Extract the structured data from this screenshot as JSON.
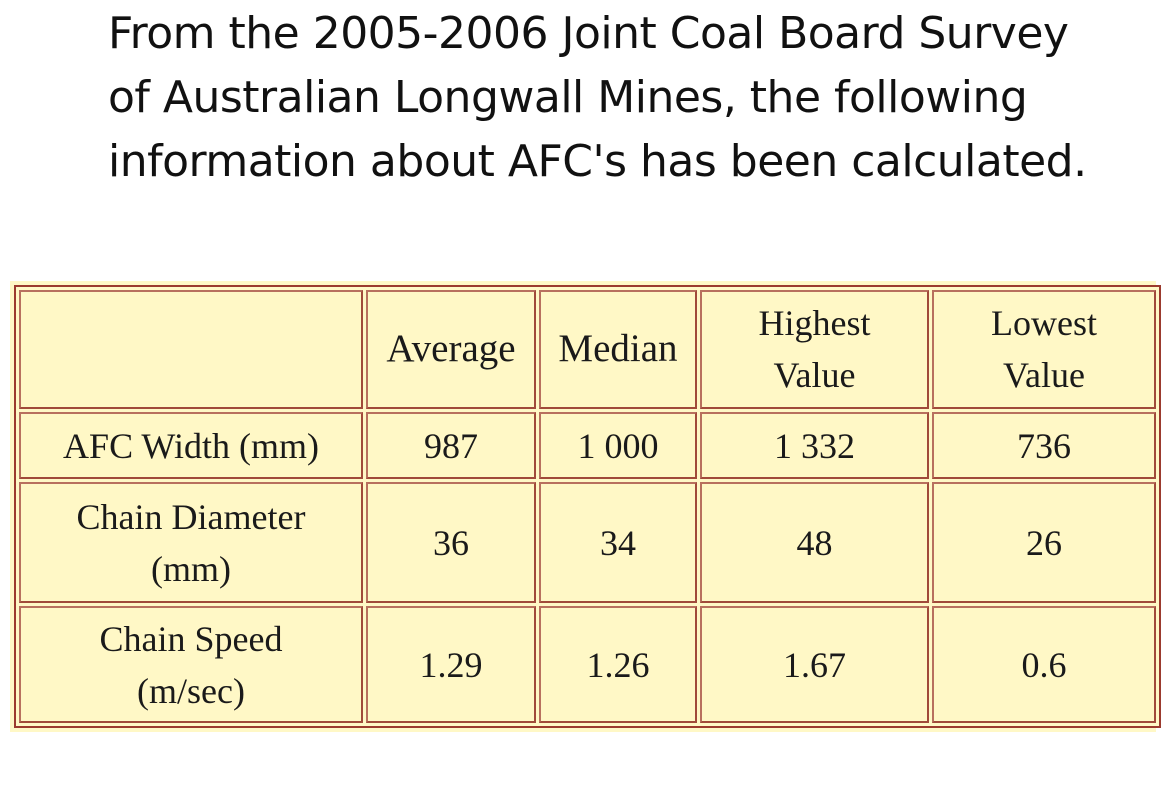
{
  "intro": {
    "lines": [
      "From the 2005-2006 Joint Coal Board Survey",
      "of Australian Longwall Mines, the following",
      "information about AFC's has been calculated."
    ]
  },
  "table": {
    "headers": {
      "corner": "",
      "average": "Average",
      "median": "Median",
      "highest_line1": "Highest",
      "highest_line2": "Value",
      "lowest_line1": "Lowest",
      "lowest_line2": "Value"
    },
    "rows": [
      {
        "label_line1": "AFC Width (mm)",
        "label_line2": "",
        "average": "987",
        "median": "1 000",
        "highest": "1 332",
        "lowest": "736"
      },
      {
        "label_line1": "Chain Diameter",
        "label_line2": "(mm)",
        "average": "36",
        "median": "34",
        "highest": "48",
        "lowest": "26"
      },
      {
        "label_line1": "Chain Speed",
        "label_line2": "(m/sec)",
        "average": "1.29",
        "median": "1.26",
        "highest": "1.67",
        "lowest": "0.6"
      }
    ],
    "colors": {
      "cell_background": "#FFF8C6",
      "border": "#A04A3A"
    }
  }
}
